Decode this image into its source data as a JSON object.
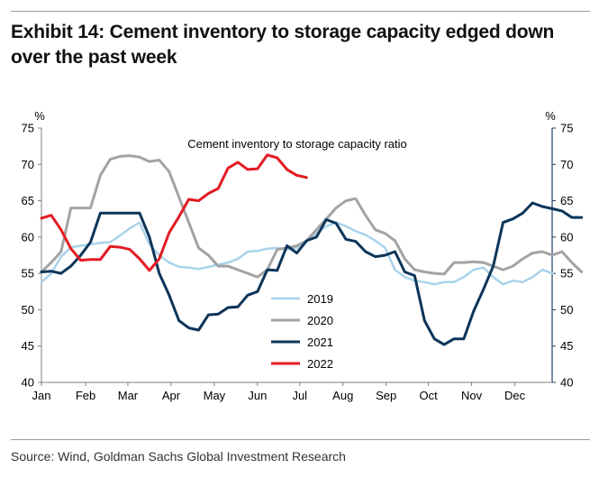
{
  "header": {
    "title": "Exhibit 14: Cement inventory to storage capacity edged down over the past week"
  },
  "footer": {
    "source": "Source: Wind, Goldman Sachs Global Investment Research"
  },
  "chart_data": {
    "type": "line",
    "title": "Cement inventory to storage capacity ratio",
    "ylabel_left": "%",
    "ylabel_right": "%",
    "ylim": [
      40,
      75
    ],
    "yticks": [
      40,
      45,
      50,
      55,
      60,
      65,
      70,
      75
    ],
    "xlim": [
      1,
      53
    ],
    "xticks": [
      {
        "label": "Jan",
        "week": 1
      },
      {
        "label": "Feb",
        "week": 5.5
      },
      {
        "label": "Mar",
        "week": 9.8
      },
      {
        "label": "Apr",
        "week": 14.2
      },
      {
        "label": "May",
        "week": 18.6
      },
      {
        "label": "Jun",
        "week": 23
      },
      {
        "label": "Jul",
        "week": 27.3
      },
      {
        "label": "Aug",
        "week": 31.7
      },
      {
        "label": "Sep",
        "week": 36.1
      },
      {
        "label": "Oct",
        "week": 40.4
      },
      {
        "label": "Nov",
        "week": 44.8
      },
      {
        "label": "Dec",
        "week": 49.2
      }
    ],
    "grid": false,
    "legend_position": "bottom-right",
    "series": [
      {
        "name": "2019",
        "color": "#a9d3ea",
        "width": 2.5,
        "values": [
          53.8,
          55,
          57.3,
          58.6,
          58.8,
          59,
          59.2,
          59.3,
          60.2,
          61.2,
          62,
          59,
          57.5,
          56.5,
          55.9,
          55.8,
          55.6,
          55.9,
          56.2,
          56.5,
          57,
          58,
          58.1,
          58.4,
          58.5,
          58.3,
          58.5,
          59.5,
          60.5,
          61.5,
          62,
          61.5,
          60.8,
          60.3,
          59.5,
          58.5,
          55.5,
          54.5,
          54,
          53.8,
          53.5,
          53.8,
          53.8,
          54.5,
          55.5,
          55.8,
          54.5,
          53.5,
          54,
          53.8,
          54.5,
          55.5,
          55
        ]
      },
      {
        "name": "2020",
        "color": "#a3a3a3",
        "width": 3,
        "values": [
          55.2,
          56.5,
          58,
          64,
          64,
          64,
          68.5,
          70.7,
          71.1,
          71.2,
          71,
          70.4,
          70.6,
          69,
          65.5,
          62,
          58.5,
          57.5,
          56,
          56,
          55.5,
          55,
          54.5,
          55.5,
          58.3,
          58.5,
          58.8,
          59.5,
          61,
          62.5,
          64,
          65,
          65.3,
          63,
          61,
          60.5,
          59.5,
          57,
          55.5,
          55.2,
          55,
          54.9,
          56.5,
          56.5,
          56.6,
          56.5,
          56,
          55.5,
          56,
          57,
          57.8,
          58,
          57.5,
          58,
          56.5,
          55.2
        ]
      },
      {
        "name": "2021",
        "color": "#0c3559",
        "width": 3,
        "values": [
          55.2,
          55.3,
          55,
          56,
          57.5,
          59.3,
          63.3,
          63.3,
          63.3,
          63.3,
          63.3,
          60,
          55,
          52,
          48.5,
          47.5,
          47.2,
          49.3,
          49.4,
          50.3,
          50.4,
          52,
          52.5,
          55.5,
          55.4,
          58.8,
          57.8,
          59.5,
          60,
          62.4,
          61.9,
          59.7,
          59.4,
          58,
          57.3,
          57.5,
          58,
          55.2,
          54.7,
          48.5,
          46,
          45.2,
          46,
          46,
          49.8,
          52.8,
          56,
          62,
          62.5,
          63.3,
          64.7,
          64.2,
          63.9,
          63.6,
          62.7,
          62.7
        ]
      },
      {
        "name": "2022",
        "color": "#e31c23",
        "width": 3,
        "values": [
          62.6,
          63,
          61,
          58.4,
          56.8,
          56.9,
          56.9,
          58.7,
          58.6,
          58.3,
          57,
          55.4,
          57,
          60.6,
          62.8,
          65.2,
          65,
          66,
          66.7,
          69.5,
          70.3,
          69.3,
          69.4,
          71.3,
          70.9,
          69.3,
          68.5,
          68.2
        ]
      }
    ]
  }
}
